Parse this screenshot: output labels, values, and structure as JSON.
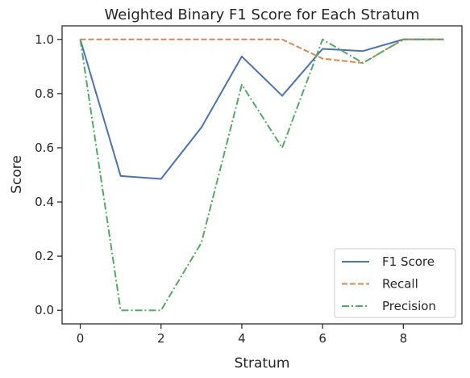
{
  "chart_data": {
    "type": "line",
    "title": "Weighted Binary F1 Score for Each Stratum",
    "xlabel": "Stratum",
    "ylabel": "Score",
    "xlim": [
      -0.45,
      9.45
    ],
    "ylim": [
      -0.05,
      1.05
    ],
    "xticks": [
      0,
      2,
      4,
      6,
      8
    ],
    "yticks": [
      0.0,
      0.2,
      0.4,
      0.6,
      0.8,
      1.0
    ],
    "xtick_labels": [
      "0",
      "2",
      "4",
      "6",
      "8"
    ],
    "ytick_labels": [
      "0.0",
      "0.2",
      "0.4",
      "0.6",
      "0.8",
      "1.0"
    ],
    "legend_position": "lower-right",
    "grid": false,
    "x": [
      0,
      1,
      2,
      3,
      4,
      5,
      6,
      7,
      8,
      9
    ],
    "series": [
      {
        "name": "F1 Score",
        "color": "#4c72b0",
        "dash": "solid",
        "values": [
          1.0,
          0.496,
          0.485,
          0.675,
          0.937,
          0.792,
          0.965,
          0.957,
          1.0,
          1.0
        ]
      },
      {
        "name": "Recall",
        "color": "#dd8452",
        "dash": "dashed",
        "values": [
          1.0,
          1.0,
          1.0,
          1.0,
          1.0,
          1.0,
          0.929,
          0.913,
          1.0,
          1.0
        ]
      },
      {
        "name": "Precision",
        "color": "#55a868",
        "dash": "dashdot",
        "values": [
          1.0,
          0.0,
          0.0,
          0.25,
          0.833,
          0.6,
          1.0,
          0.913,
          1.0,
          1.0
        ]
      }
    ]
  }
}
